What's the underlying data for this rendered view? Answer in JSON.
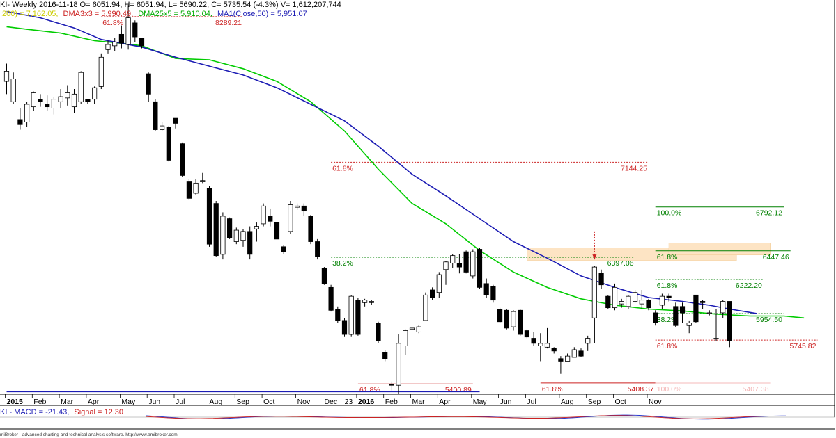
{
  "header": {
    "main": "KI- Weekly 2016-11-18 O= 6051.94, H= 6051.94, L= 5690.22, C= 5735.54 (-4.3%) V= 1,612,207,744",
    "ind_prefix": ",200) = 7,162.05,",
    "ind_dma3": "DMA3x3 = 5,990.49,",
    "ind_dma25": "DMA25x5 = 5,910.04,",
    "ind_ma1": "MA1(Close,50) = 5,951.07"
  },
  "macd_header": {
    "prefix": "KI - MACD = -21.43,",
    "signal": "Signal = 12.30"
  },
  "footer": "miBroker - advanced charting and technical analysis software. http://www.amibroker.com",
  "colors": {
    "up_candle": "#ffffff",
    "down_candle": "#000000",
    "dma25": "#00cc00",
    "ma50": "#1c1cb4",
    "fib": "#cc2222",
    "fib_green": "#008000",
    "zone": "#fde4c4",
    "macd": "#2233cc",
    "signal": "#cc2222"
  },
  "chart_data": {
    "type": "candlestick",
    "ylim": [
      5320,
      8420
    ],
    "x_tick_labels": [
      {
        "i": 0,
        "label": "2015"
      },
      {
        "i": 4,
        "label": "Feb"
      },
      {
        "i": 8,
        "label": "Mar"
      },
      {
        "i": 12,
        "label": "Apr"
      },
      {
        "i": 17,
        "label": "May"
      },
      {
        "i": 21,
        "label": "Jun"
      },
      {
        "i": 25,
        "label": "Jul"
      },
      {
        "i": 30,
        "label": "Aug"
      },
      {
        "i": 34,
        "label": "Sep"
      },
      {
        "i": 38,
        "label": "Oct"
      },
      {
        "i": 43,
        "label": "Nov"
      },
      {
        "i": 47,
        "label": "Dec"
      },
      {
        "i": 50,
        "label": "23"
      },
      {
        "i": 52,
        "label": "2016"
      },
      {
        "i": 56,
        "label": "Feb"
      },
      {
        "i": 60,
        "label": "Mar"
      },
      {
        "i": 64,
        "label": "Apr"
      },
      {
        "i": 69,
        "label": "May"
      },
      {
        "i": 73,
        "label": "Jun"
      },
      {
        "i": 77,
        "label": "Jul"
      },
      {
        "i": 82,
        "label": "Aug"
      },
      {
        "i": 86,
        "label": "Sep"
      },
      {
        "i": 90,
        "label": "Oct"
      },
      {
        "i": 95,
        "label": "Nov"
      }
    ],
    "candles": [
      [
        7780,
        7920,
        7680,
        7860
      ],
      [
        7620,
        7850,
        7600,
        7800
      ],
      [
        7480,
        7570,
        7400,
        7440
      ],
      [
        7460,
        7620,
        7420,
        7600
      ],
      [
        7580,
        7700,
        7550,
        7690
      ],
      [
        7640,
        7680,
        7580,
        7620
      ],
      [
        7600,
        7670,
        7550,
        7580
      ],
      [
        7570,
        7660,
        7520,
        7640
      ],
      [
        7620,
        7720,
        7570,
        7660
      ],
      [
        7650,
        7750,
        7590,
        7690
      ],
      [
        7580,
        7720,
        7530,
        7680
      ],
      [
        7620,
        7860,
        7600,
        7850
      ],
      [
        7640,
        7640,
        7600,
        7620
      ],
      [
        7640,
        7740,
        7600,
        7730
      ],
      [
        7740,
        8000,
        7720,
        7970
      ],
      [
        8030,
        8100,
        8000,
        8070
      ],
      [
        8060,
        8120,
        8020,
        8090
      ],
      [
        8150,
        8220,
        8040,
        8080
      ],
      [
        8070,
        8380,
        8030,
        8280
      ],
      [
        8240,
        8260,
        8090,
        8130
      ],
      [
        8120,
        8120,
        8040,
        8060
      ],
      [
        7840,
        7850,
        7620,
        7680
      ],
      [
        7620,
        7640,
        7390,
        7400
      ],
      [
        7400,
        7460,
        7390,
        7430
      ],
      [
        7420,
        7430,
        7150,
        7160
      ],
      [
        7490,
        7490,
        7410,
        7450
      ],
      [
        7290,
        7300,
        7030,
        7040
      ],
      [
        6990,
        7010,
        6850,
        6860
      ],
      [
        6900,
        7010,
        6890,
        6980
      ],
      [
        6990,
        7060,
        6980,
        7000
      ],
      [
        6940,
        6960,
        6480,
        6500
      ],
      [
        6820,
        6840,
        6400,
        6410
      ],
      [
        6420,
        6750,
        6380,
        6720
      ],
      [
        6700,
        6710,
        6540,
        6550
      ],
      [
        6520,
        6630,
        6500,
        6610
      ],
      [
        6530,
        6620,
        6480,
        6600
      ],
      [
        6600,
        6640,
        6380,
        6420
      ],
      [
        6620,
        6670,
        6520,
        6640
      ],
      [
        6660,
        6820,
        6640,
        6800
      ],
      [
        6720,
        6780,
        6640,
        6680
      ],
      [
        6670,
        6680,
        6520,
        6540
      ],
      [
        6480,
        6490,
        6420,
        6440
      ],
      [
        6600,
        6840,
        6580,
        6810
      ],
      [
        6790,
        6820,
        6770,
        6800
      ],
      [
        6800,
        6820,
        6720,
        6760
      ],
      [
        6720,
        6730,
        6500,
        6520
      ],
      [
        6520,
        6540,
        6380,
        6400
      ],
      [
        6310,
        6320,
        6180,
        6190
      ],
      [
        6160,
        6180,
        5970,
        5980
      ],
      [
        5990,
        6010,
        5880,
        5900
      ],
      [
        5900,
        5920,
        5770,
        5790
      ],
      [
        5790,
        6100,
        5770,
        6090
      ],
      [
        6060,
        6080,
        5780,
        5790
      ],
      [
        6040,
        6070,
        6010,
        6060
      ],
      [
        6040,
        6060,
        6020,
        6050
      ],
      [
        5880,
        5890,
        5720,
        5740
      ],
      [
        5650,
        5670,
        5580,
        5600
      ],
      [
        5400,
        5420,
        5350,
        5390
      ],
      [
        5390,
        5790,
        5320,
        5720
      ],
      [
        5700,
        5830,
        5630,
        5820
      ],
      [
        5830,
        5860,
        5750,
        5840
      ],
      [
        5810,
        5860,
        5800,
        5850
      ],
      [
        5900,
        6120,
        5900,
        6100
      ],
      [
        6140,
        6160,
        6060,
        6080
      ],
      [
        6120,
        6280,
        6080,
        6260
      ],
      [
        6300,
        6370,
        6180,
        6360
      ],
      [
        6350,
        6420,
        6310,
        6410
      ],
      [
        6350,
        6420,
        6270,
        6320
      ],
      [
        6440,
        6450,
        6270,
        6280
      ],
      [
        6250,
        6460,
        6230,
        6440
      ],
      [
        6460,
        6470,
        6150,
        6160
      ],
      [
        6190,
        6230,
        6080,
        6100
      ],
      [
        6170,
        6180,
        6040,
        6060
      ],
      [
        5990,
        6000,
        5880,
        5890
      ],
      [
        5980,
        5990,
        5830,
        5840
      ],
      [
        5850,
        5980,
        5820,
        5970
      ],
      [
        5980,
        5990,
        5780,
        5790
      ],
      [
        5820,
        5830,
        5760,
        5770
      ],
      [
        5760,
        5810,
        5700,
        5720
      ],
      [
        5700,
        5800,
        5580,
        5720
      ],
      [
        5690,
        5840,
        5680,
        5720
      ],
      [
        5680,
        5690,
        5640,
        5660
      ],
      [
        5600,
        5620,
        5480,
        5580
      ],
      [
        5580,
        5640,
        5580,
        5620
      ],
      [
        5610,
        5690,
        5610,
        5670
      ],
      [
        5660,
        5680,
        5610,
        5620
      ],
      [
        5720,
        5780,
        5660,
        5760
      ],
      [
        5920,
        6330,
        5720,
        6320
      ],
      [
        6270,
        6300,
        6150,
        6180
      ],
      [
        6090,
        6100,
        5990,
        6000
      ],
      [
        6000,
        6190,
        5980,
        6160
      ],
      [
        6030,
        6070,
        6000,
        6050
      ],
      [
        6010,
        6100,
        5990,
        6090
      ],
      [
        6050,
        6140,
        6040,
        6120
      ],
      [
        6030,
        6140,
        5990,
        6060
      ],
      [
        6060,
        6070,
        5980,
        6000
      ],
      [
        5960,
        5980,
        5860,
        5880
      ],
      [
        6020,
        6110,
        5990,
        6090
      ],
      [
        6090,
        6110,
        6050,
        6080
      ],
      [
        6010,
        6040,
        5850,
        5860
      ],
      [
        6010,
        6040,
        5880,
        5960
      ],
      [
        5860,
        5900,
        5800,
        5880
      ],
      [
        6100,
        6100,
        5880,
        5890
      ],
      [
        6050,
        6060,
        5990,
        6040
      ],
      [
        5960,
        5980,
        5940,
        5960
      ],
      [
        5760,
        5990,
        5740,
        5760
      ],
      [
        5960,
        6060,
        5920,
        6050
      ],
      [
        6050,
        6050,
        5690,
        5740
      ]
    ],
    "ma50": [
      [
        0,
        8330
      ],
      [
        5,
        8280
      ],
      [
        10,
        8200
      ],
      [
        14,
        8110
      ],
      [
        17,
        8080
      ],
      [
        20,
        8050
      ],
      [
        25,
        7970
      ],
      [
        30,
        7900
      ],
      [
        35,
        7830
      ],
      [
        40,
        7730
      ],
      [
        45,
        7600
      ],
      [
        50,
        7470
      ],
      [
        55,
        7270
      ],
      [
        60,
        7050
      ],
      [
        65,
        6880
      ],
      [
        70,
        6700
      ],
      [
        75,
        6520
      ],
      [
        80,
        6390
      ],
      [
        85,
        6250
      ],
      [
        90,
        6160
      ],
      [
        95,
        6080
      ],
      [
        100,
        6050
      ],
      [
        104,
        6020
      ],
      [
        107,
        5990
      ],
      [
        111,
        5955
      ]
    ],
    "dma25": [
      [
        0,
        8210
      ],
      [
        3,
        8190
      ],
      [
        8,
        8160
      ],
      [
        13,
        8100
      ],
      [
        17,
        8080
      ],
      [
        20,
        8060
      ],
      [
        25,
        7960
      ],
      [
        30,
        7950
      ],
      [
        35,
        7880
      ],
      [
        40,
        7780
      ],
      [
        45,
        7620
      ],
      [
        50,
        7390
      ],
      [
        55,
        7090
      ],
      [
        60,
        6820
      ],
      [
        65,
        6660
      ],
      [
        70,
        6450
      ],
      [
        75,
        6280
      ],
      [
        80,
        6160
      ],
      [
        85,
        6070
      ],
      [
        90,
        6020
      ],
      [
        95,
        5990
      ],
      [
        100,
        5975
      ],
      [
        105,
        5950
      ],
      [
        110,
        5935
      ],
      [
        115,
        5935
      ],
      [
        118,
        5920
      ]
    ],
    "fib_levels": [
      {
        "x1": 14,
        "x2": 35,
        "value": 8289.21,
        "left": "61.8%",
        "right": "8289.21",
        "color": "red",
        "dashed": true
      },
      {
        "x1": 48,
        "x2": 95,
        "value": 7144.25,
        "left": "61.8%",
        "right": "7144.25",
        "color": "red",
        "dashed": true
      },
      {
        "x1": 48,
        "x2": 93,
        "value": 6397.06,
        "left": "38.2%",
        "right": "6397.06",
        "color": "green",
        "dashed": true
      },
      {
        "x1": 52,
        "x2": 69,
        "value": 5400.89,
        "left": "61.8%",
        "right": "5400.89",
        "color": "red",
        "dashed": false
      },
      {
        "x1": 79,
        "x2": 96,
        "value": 5408.37,
        "left": "61.8%",
        "right": "5408.37",
        "color": "red",
        "dashed": false
      },
      {
        "x1": 96,
        "x2": 115,
        "value": 6792.12,
        "left": "100.0%",
        "right": "6792.12",
        "color": "green",
        "dashed": false
      },
      {
        "x1": 96,
        "x2": 116,
        "value": 6447.46,
        "left": "61.8%",
        "right": "6447.46",
        "color": "green",
        "dashed": false
      },
      {
        "x1": 96,
        "x2": 112,
        "value": 6222.2,
        "left": "61.8%",
        "right": "6222.20",
        "color": "green",
        "dashed": true
      },
      {
        "x1": 96,
        "x2": 115,
        "value": 5954.5,
        "left": "38.2%",
        "right": "5954.50",
        "color": "green",
        "dashed": true
      },
      {
        "x1": 96,
        "x2": 120,
        "value": 5745.82,
        "left": "61.8%",
        "right": "5745.82",
        "color": "red",
        "dashed": true
      },
      {
        "x1": 96,
        "x2": 113,
        "value": 5407.38,
        "left": "100.0%",
        "right": "5407.38",
        "color": "pink",
        "dashed": false
      }
    ],
    "zones": [
      {
        "x1": 77,
        "x2": 108,
        "low": 6370,
        "high": 6470
      },
      {
        "x1": 98,
        "x2": 113,
        "low": 6415,
        "high": 6510
      }
    ],
    "arrow": {
      "x": 87,
      "from": 6600,
      "to": 6380
    },
    "bottom_line": {
      "x1": 0,
      "x2": 70,
      "value": 5340
    }
  }
}
